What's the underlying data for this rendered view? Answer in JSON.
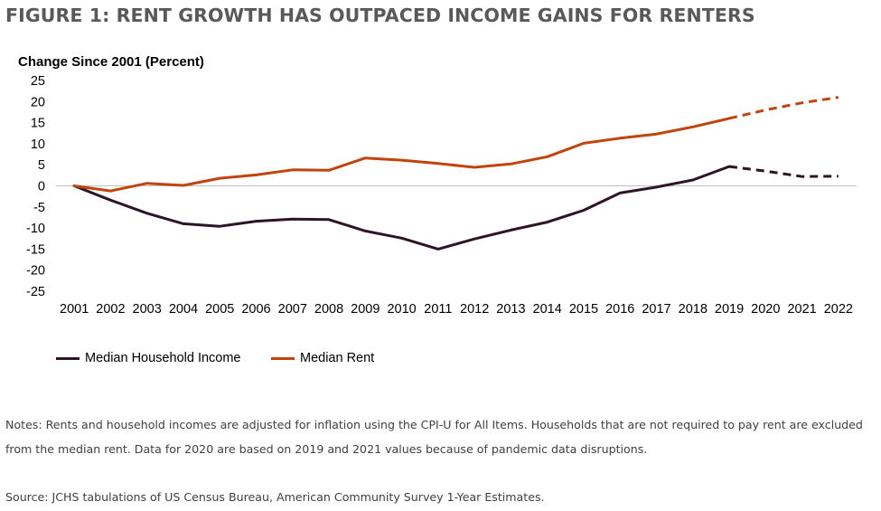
{
  "figure": {
    "title": "FIGURE 1: RENT GROWTH HAS OUTPACED INCOME GAINS FOR RENTERS",
    "notes": "Notes: Rents and household incomes are adjusted for inflation using the CPI-U for All Items. Households that are not required to pay rent are excluded from the median rent. Data for 2020 are based on 2019 and 2021 values because of pandemic data disruptions.",
    "source": "Source: JCHS tabulations of US Census Bureau, American Community Survey 1-Year Estimates."
  },
  "chart_data": {
    "type": "line",
    "title": "Change Since 2001 (Percent)",
    "xlabel": "",
    "ylabel": "",
    "x": [
      "2001",
      "2002",
      "2003",
      "2004",
      "2005",
      "2006",
      "2007",
      "2008",
      "2009",
      "2010",
      "2011",
      "2012",
      "2013",
      "2014",
      "2015",
      "2016",
      "2017",
      "2018",
      "2019",
      "2020",
      "2021",
      "2022"
    ],
    "ylim": [
      -25,
      25
    ],
    "yticks": [
      25,
      20,
      15,
      10,
      5,
      0,
      -5,
      -10,
      -15,
      -20,
      -25
    ],
    "dashed_from": "2019",
    "grid": false,
    "legend_position": "bottom-left",
    "series": [
      {
        "name": "Median Household Income",
        "color": "#2d1526",
        "values": [
          0,
          -3.4,
          -6.5,
          -9.0,
          -9.6,
          -8.4,
          -7.9,
          -8.0,
          -10.7,
          -12.4,
          -15.0,
          -12.6,
          -10.5,
          -8.6,
          -5.8,
          -1.7,
          -0.3,
          1.4,
          4.6,
          3.5,
          2.2,
          2.3
        ]
      },
      {
        "name": "Median Rent",
        "color": "#c0440b",
        "values": [
          0,
          -1.2,
          0.6,
          0.1,
          1.8,
          2.6,
          3.8,
          3.7,
          6.6,
          6.1,
          5.3,
          4.4,
          5.2,
          6.9,
          10.1,
          11.3,
          12.3,
          14.0,
          16.0,
          18.0,
          19.7,
          21.0
        ]
      }
    ]
  }
}
